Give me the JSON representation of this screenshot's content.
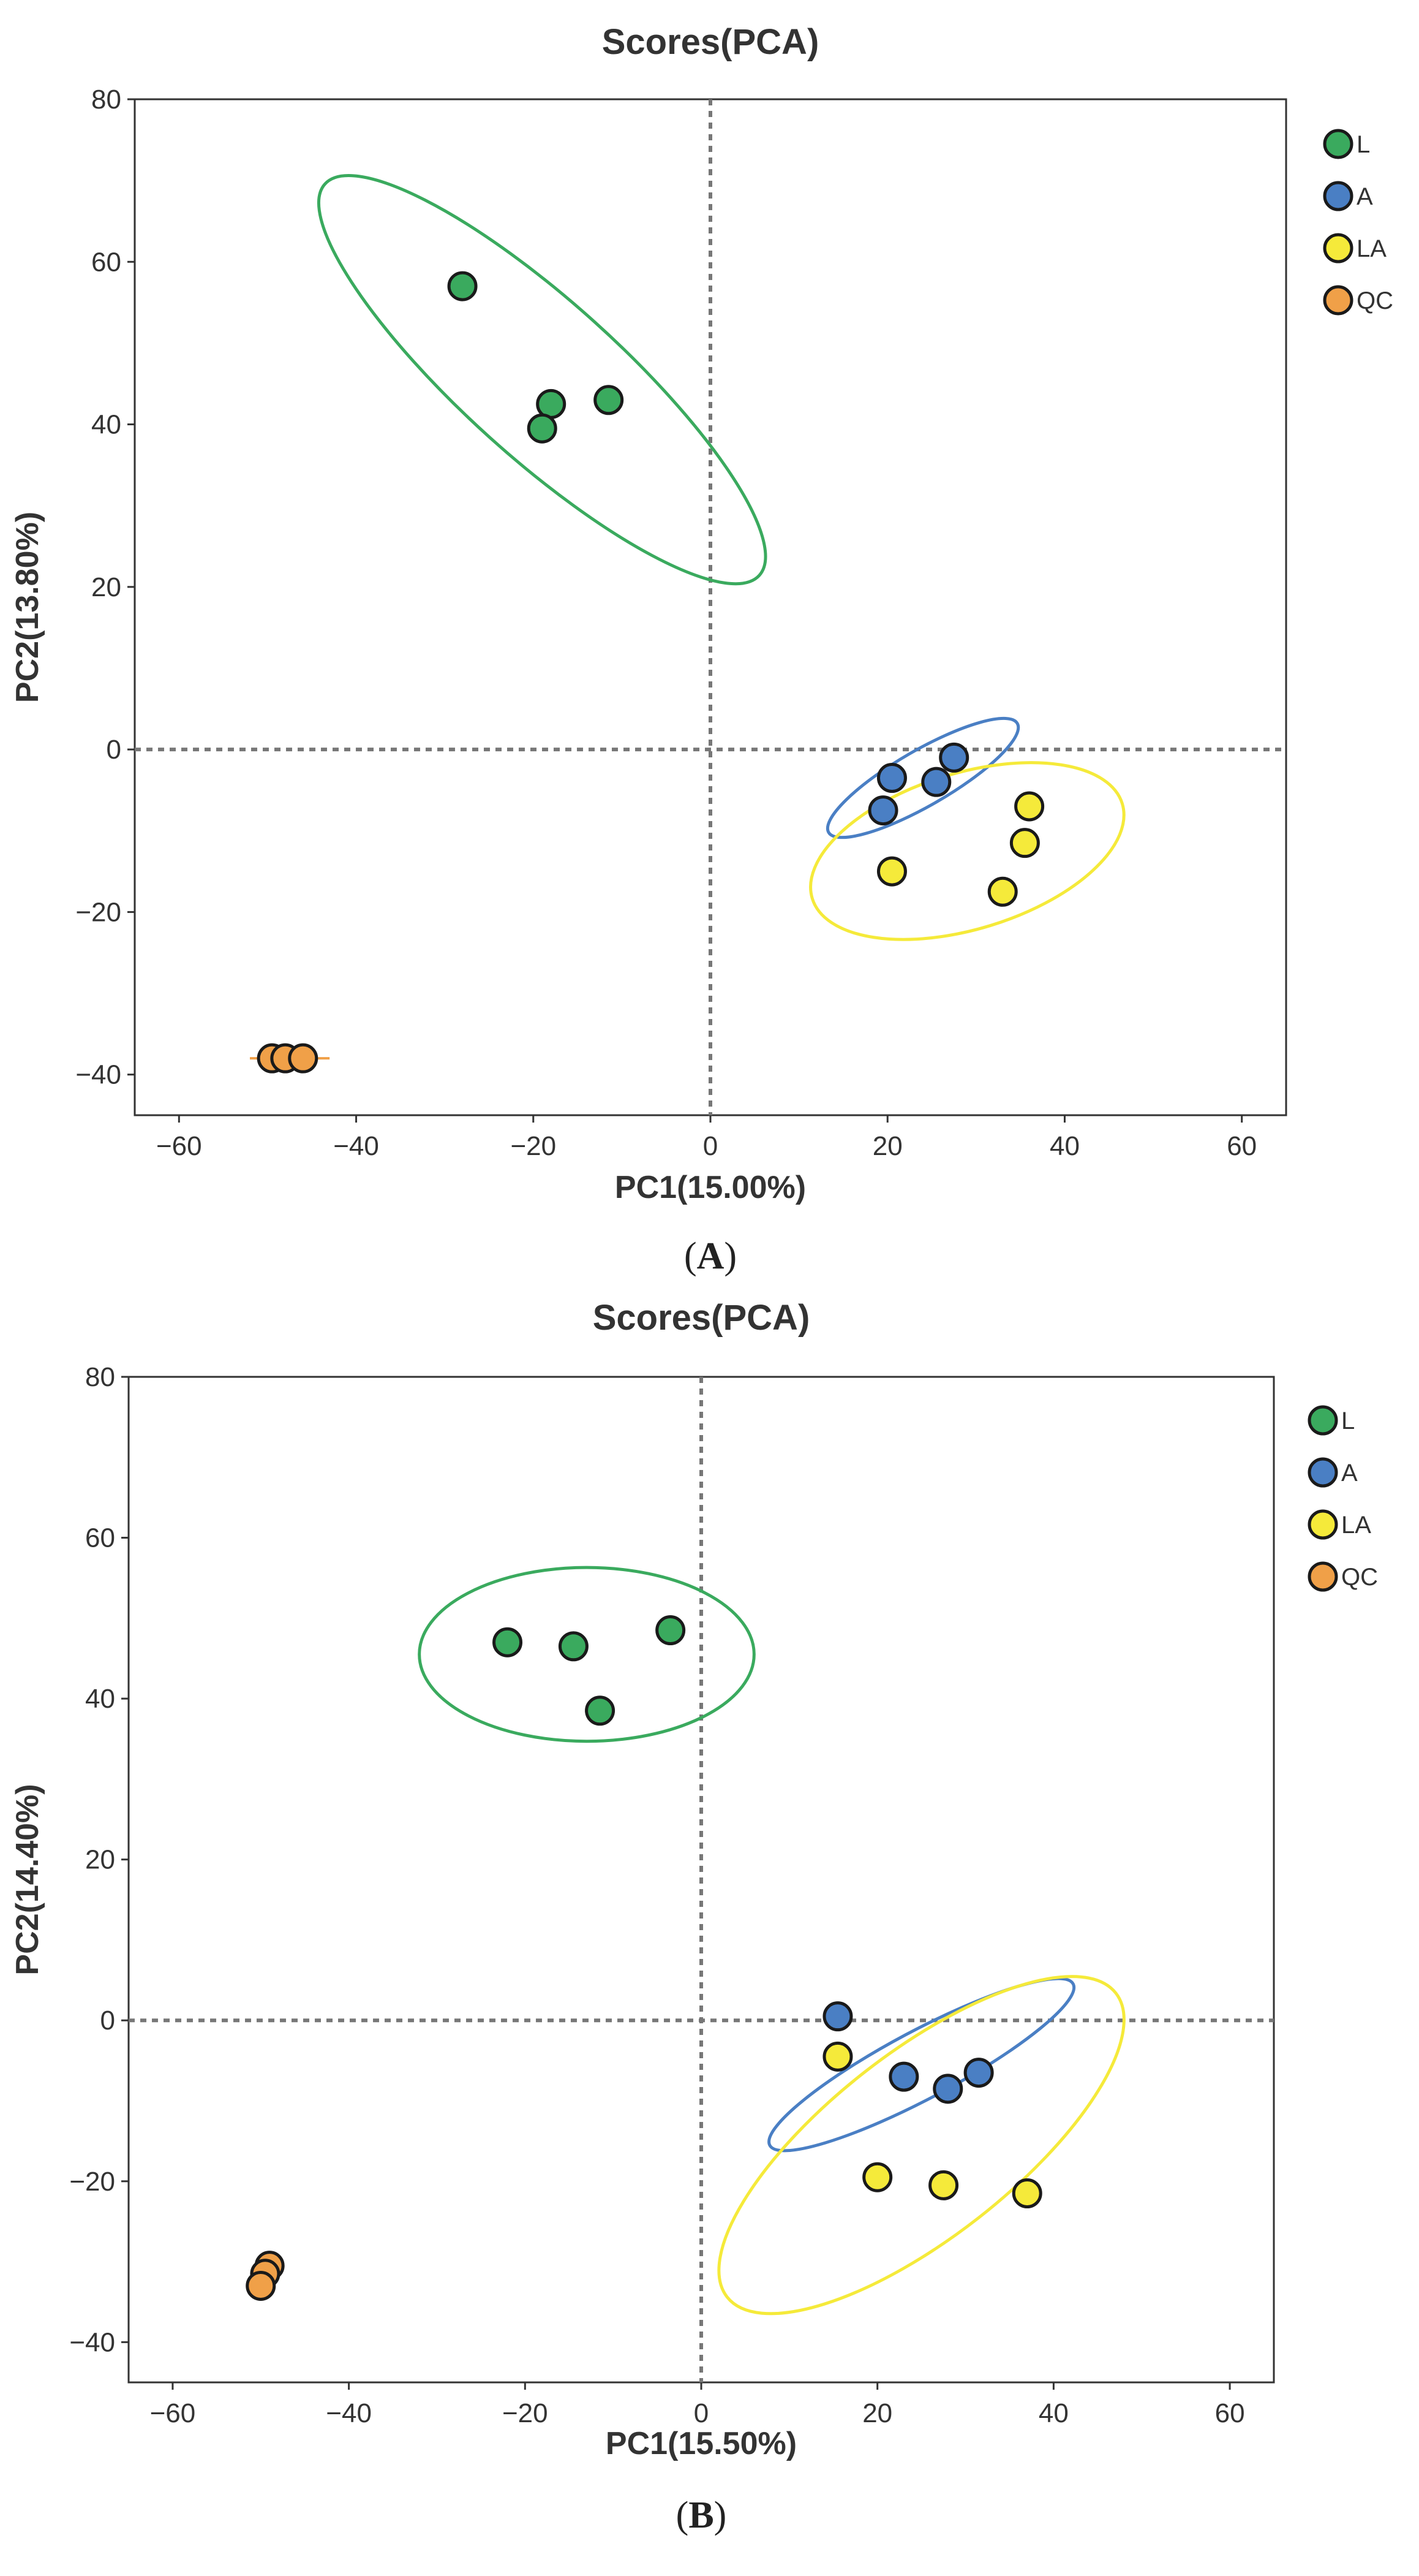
{
  "colors": {
    "L": "#3aaa5e",
    "A": "#4a7fc4",
    "LA": "#f5ea3a",
    "QC": "#f0a048"
  },
  "chart_data": [
    {
      "type": "scatter",
      "panel_label": "A",
      "title": "Scores(PCA)",
      "xlabel": "PC1(15.00%)",
      "ylabel": "PC2(13.80%)",
      "xlim": [
        -65,
        65
      ],
      "ylim": [
        -45,
        80
      ],
      "xticks": [
        -60,
        -40,
        -20,
        0,
        20,
        40,
        60
      ],
      "yticks": [
        -40,
        -20,
        0,
        20,
        40,
        60,
        80
      ],
      "legend_position": "right",
      "series": [
        {
          "name": "L",
          "points": [
            [
              -28,
              57
            ],
            [
              -18,
              42.5
            ],
            [
              -19,
              39.5
            ],
            [
              -11.5,
              43
            ]
          ],
          "ellipse": {
            "cx": -19,
            "cy": 45.5,
            "rx": 33,
            "ry": 9.6,
            "angle_deg": -42
          }
        },
        {
          "name": "A",
          "points": [
            [
              20.5,
              -3.5
            ],
            [
              27.5,
              -1
            ],
            [
              25.5,
              -4
            ],
            [
              19.5,
              -7.5
            ]
          ],
          "ellipse": {
            "cx": 24,
            "cy": -3.5,
            "rx": 12.3,
            "ry": 3.4,
            "angle_deg": 30
          }
        },
        {
          "name": "LA",
          "points": [
            [
              20.5,
              -15
            ],
            [
              36,
              -7
            ],
            [
              35.5,
              -11.5
            ],
            [
              33,
              -17.5
            ]
          ],
          "ellipse": {
            "cx": 29,
            "cy": -12.5,
            "rx": 18.3,
            "ry": 9.6,
            "angle_deg": 17
          }
        },
        {
          "name": "QC",
          "points": [
            [
              -49.5,
              -38
            ],
            [
              -48,
              -38
            ],
            [
              -46,
              -38
            ]
          ],
          "ellipse": {
            "cx": -47.5,
            "cy": -38,
            "rx": 4.5,
            "ry": 0.25,
            "angle_deg": 0
          }
        }
      ]
    },
    {
      "type": "scatter",
      "panel_label": "B",
      "title": "Scores(PCA)",
      "xlabel": "PC1(15.50%)",
      "ylabel": "PC2(14.40%)",
      "xlim": [
        -65,
        65
      ],
      "ylim": [
        -45,
        80
      ],
      "xticks": [
        -60,
        -40,
        -20,
        0,
        20,
        40,
        60
      ],
      "yticks": [
        -40,
        -20,
        0,
        20,
        40,
        60,
        80
      ],
      "legend_position": "right",
      "series": [
        {
          "name": "L",
          "points": [
            [
              -22,
              47
            ],
            [
              -14.5,
              46.5
            ],
            [
              -3.5,
              48.5
            ],
            [
              -11.5,
              38.5
            ]
          ],
          "ellipse": {
            "cx": -13,
            "cy": 45.5,
            "rx": 19,
            "ry": 10.8,
            "angle_deg": 0
          }
        },
        {
          "name": "A",
          "points": [
            [
              15.5,
              0.5
            ],
            [
              23,
              -7
            ],
            [
              28,
              -8.5
            ],
            [
              31.5,
              -6.5
            ]
          ],
          "ellipse": {
            "cx": 25,
            "cy": -5.5,
            "rx": 19.5,
            "ry": 4.2,
            "angle_deg": 28
          }
        },
        {
          "name": "LA",
          "points": [
            [
              15.5,
              -4.5
            ],
            [
              20,
              -19.5
            ],
            [
              27.5,
              -20.5
            ],
            [
              37,
              -21.5
            ]
          ],
          "ellipse": {
            "cx": 25,
            "cy": -15.5,
            "rx": 28,
            "ry": 11.5,
            "angle_deg": 38
          }
        },
        {
          "name": "QC",
          "points": [
            [
              -49,
              -30.5
            ],
            [
              -49.5,
              -31.5
            ],
            [
              -50,
              -33
            ]
          ],
          "ellipse": null
        }
      ]
    }
  ]
}
